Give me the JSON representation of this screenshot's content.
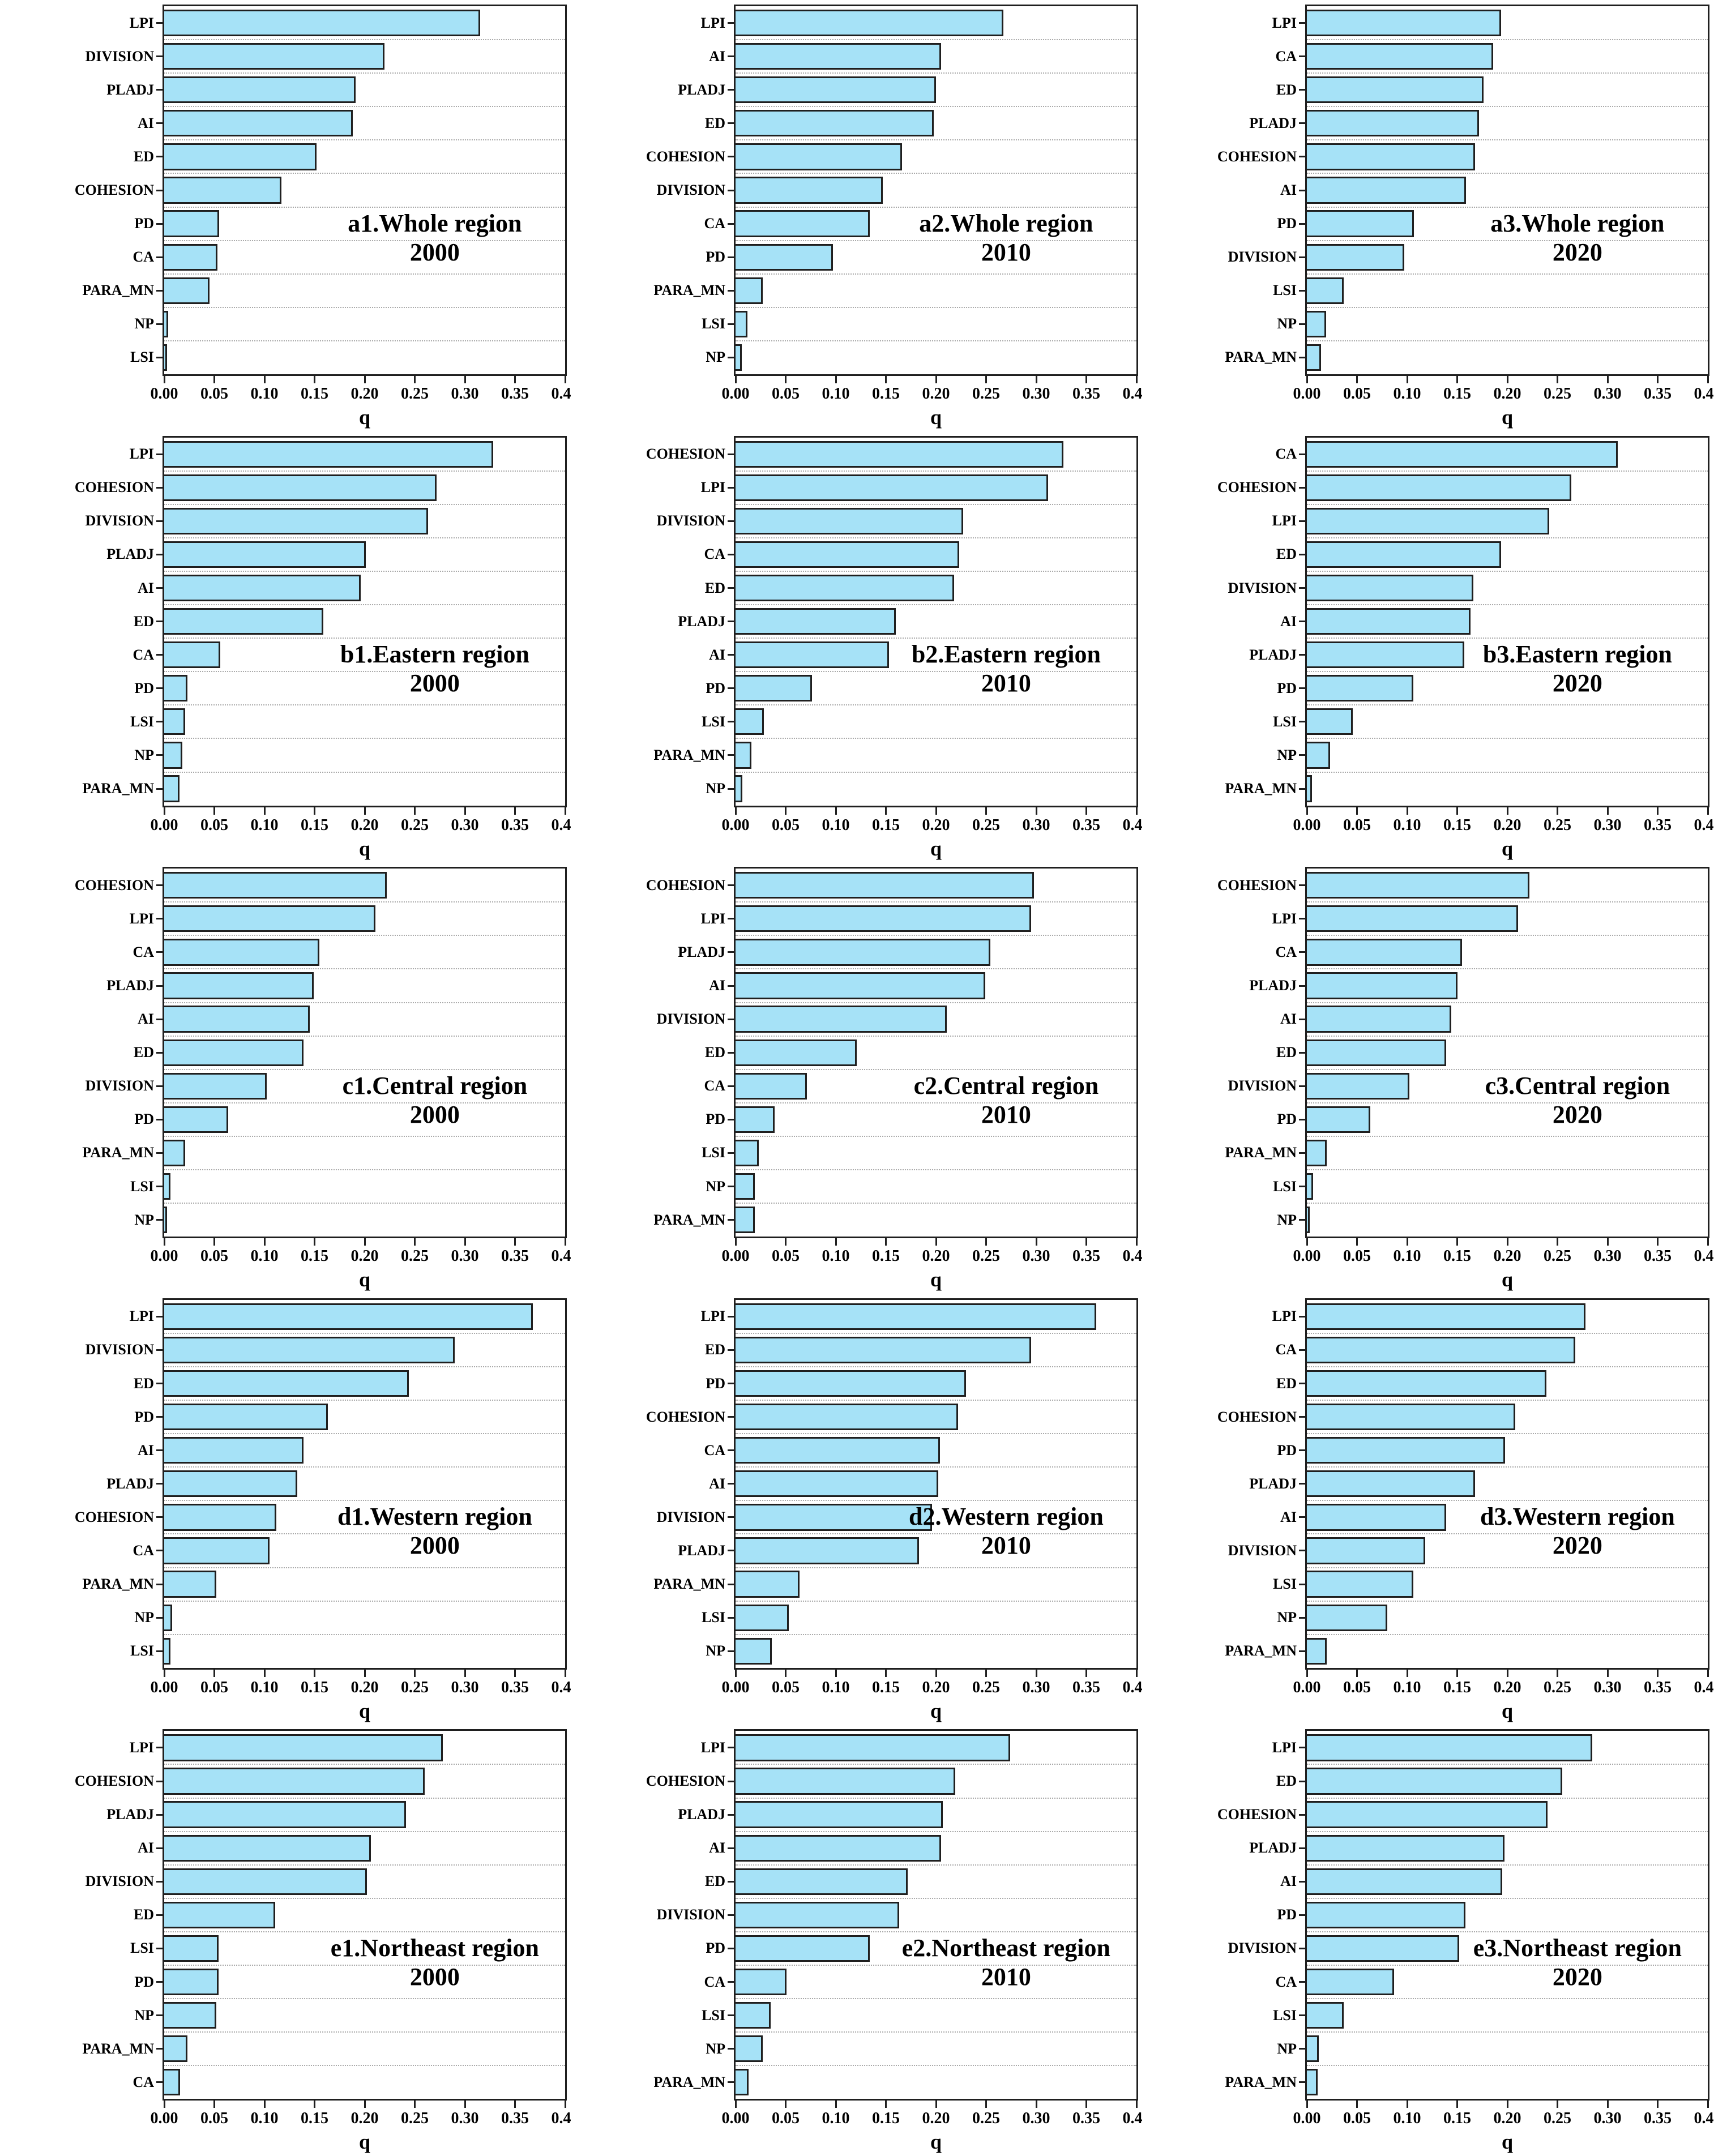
{
  "figure": {
    "bar_color": "#a6e2f7",
    "bar_border_color": "#1f1f1f",
    "gridline_color": "#a9a9a9",
    "text_color": "#000000",
    "axis": {
      "xlabel": "q",
      "xlim": [
        0,
        0.4
      ],
      "xticks": [
        "0.00",
        "0.05",
        "0.10",
        "0.15",
        "0.20",
        "0.25",
        "0.30",
        "0.35",
        "0.40"
      ],
      "grid": "horizontal-dotted",
      "orientation": "horizontal-bars"
    }
  },
  "chart_data": [
    {
      "type": "bar",
      "id": "a1",
      "title_line1": "a1.Whole region",
      "title_line2": "2000",
      "region": "Whole region",
      "year": "2000",
      "xlabel": "q",
      "xlim": [
        0,
        0.4
      ],
      "categories": [
        "LPI",
        "DIVISION",
        "PLADJ",
        "AI",
        "ED",
        "COHESION",
        "PD",
        "CA",
        "PARA_MN",
        "NP",
        "LSI"
      ],
      "values": [
        0.315,
        0.22,
        0.191,
        0.188,
        0.152,
        0.117,
        0.055,
        0.053,
        0.045,
        0.004,
        0.003
      ]
    },
    {
      "type": "bar",
      "id": "a2",
      "title_line1": "a2.Whole region",
      "title_line2": "2010",
      "region": "Whole region",
      "year": "2010",
      "xlabel": "q",
      "xlim": [
        0,
        0.4
      ],
      "categories": [
        "LPI",
        "AI",
        "PLADJ",
        "ED",
        "COHESION",
        "DIVISION",
        "CA",
        "PD",
        "PARA_MN",
        "LSI",
        "NP"
      ],
      "values": [
        0.267,
        0.205,
        0.2,
        0.198,
        0.166,
        0.147,
        0.134,
        0.097,
        0.027,
        0.012,
        0.006
      ]
    },
    {
      "type": "bar",
      "id": "a3",
      "title_line1": "a3.Whole region",
      "title_line2": "2020",
      "region": "Whole region",
      "year": "2020",
      "xlabel": "q",
      "xlim": [
        0,
        0.4
      ],
      "categories": [
        "LPI",
        "CA",
        "ED",
        "PLADJ",
        "COHESION",
        "AI",
        "PD",
        "DIVISION",
        "LSI",
        "NP",
        "PARA_MN"
      ],
      "values": [
        0.194,
        0.186,
        0.176,
        0.172,
        0.168,
        0.159,
        0.107,
        0.097,
        0.037,
        0.019,
        0.014
      ]
    },
    {
      "type": "bar",
      "id": "b1",
      "title_line1": "b1.Eastern region",
      "title_line2": "2000",
      "region": "Eastern region",
      "year": "2000",
      "xlabel": "q",
      "xlim": [
        0,
        0.4
      ],
      "categories": [
        "LPI",
        "COHESION",
        "DIVISION",
        "PLADJ",
        "AI",
        "ED",
        "CA",
        "PD",
        "LSI",
        "NP",
        "PARA_MN"
      ],
      "values": [
        0.328,
        0.272,
        0.263,
        0.201,
        0.196,
        0.159,
        0.056,
        0.023,
        0.021,
        0.018,
        0.015
      ]
    },
    {
      "type": "bar",
      "id": "b2",
      "title_line1": "b2.Eastern region",
      "title_line2": "2010",
      "region": "Eastern region",
      "year": "2010",
      "xlabel": "q",
      "xlim": [
        0,
        0.4
      ],
      "categories": [
        "COHESION",
        "LPI",
        "DIVISION",
        "CA",
        "ED",
        "PLADJ",
        "AI",
        "PD",
        "LSI",
        "PARA_MN",
        "NP"
      ],
      "values": [
        0.327,
        0.312,
        0.227,
        0.223,
        0.218,
        0.16,
        0.153,
        0.076,
        0.028,
        0.016,
        0.007
      ]
    },
    {
      "type": "bar",
      "id": "b3",
      "title_line1": "b3.Eastern region",
      "title_line2": "2020",
      "region": "Eastern region",
      "year": "2020",
      "xlabel": "q",
      "xlim": [
        0,
        0.4
      ],
      "categories": [
        "CA",
        "COHESION",
        "LPI",
        "ED",
        "DIVISION",
        "AI",
        "PLADJ",
        "PD",
        "LSI",
        "NP",
        "PARA_MN"
      ],
      "values": [
        0.31,
        0.264,
        0.242,
        0.194,
        0.166,
        0.163,
        0.157,
        0.106,
        0.046,
        0.023,
        0.005
      ]
    },
    {
      "type": "bar",
      "id": "c1",
      "title_line1": "c1.Central region",
      "title_line2": "2000",
      "region": "Central region",
      "year": "2000",
      "xlabel": "q",
      "xlim": [
        0,
        0.4
      ],
      "categories": [
        "COHESION",
        "LPI",
        "CA",
        "PLADJ",
        "AI",
        "ED",
        "DIVISION",
        "PD",
        "PARA_MN",
        "LSI",
        "NP"
      ],
      "values": [
        0.222,
        0.211,
        0.155,
        0.149,
        0.145,
        0.139,
        0.102,
        0.064,
        0.021,
        0.006,
        0.003
      ]
    },
    {
      "type": "bar",
      "id": "c2",
      "title_line1": "c2.Central region",
      "title_line2": "2010",
      "region": "Central region",
      "year": "2010",
      "xlabel": "q",
      "xlim": [
        0,
        0.4
      ],
      "categories": [
        "COHESION",
        "LPI",
        "PLADJ",
        "AI",
        "DIVISION",
        "ED",
        "CA",
        "PD",
        "LSI",
        "NP",
        "PARA_MN"
      ],
      "values": [
        0.298,
        0.295,
        0.254,
        0.249,
        0.211,
        0.121,
        0.071,
        0.039,
        0.023,
        0.019,
        0.019
      ]
    },
    {
      "type": "bar",
      "id": "c3",
      "title_line1": "c3.Central region",
      "title_line2": "2020",
      "region": "Central region",
      "year": "2020",
      "xlabel": "q",
      "xlim": [
        0,
        0.4
      ],
      "categories": [
        "COHESION",
        "LPI",
        "CA",
        "PLADJ",
        "AI",
        "ED",
        "DIVISION",
        "PD",
        "PARA_MN",
        "LSI",
        "NP"
      ],
      "values": [
        0.222,
        0.211,
        0.155,
        0.15,
        0.144,
        0.139,
        0.102,
        0.063,
        0.02,
        0.006,
        0.003
      ]
    },
    {
      "type": "bar",
      "id": "d1",
      "title_line1": "d1.Western region",
      "title_line2": "2000",
      "region": "Western region",
      "year": "2000",
      "xlabel": "q",
      "xlim": [
        0,
        0.4
      ],
      "categories": [
        "LPI",
        "DIVISION",
        "ED",
        "PD",
        "AI",
        "PLADJ",
        "COHESION",
        "CA",
        "PARA_MN",
        "NP",
        "LSI"
      ],
      "values": [
        0.368,
        0.29,
        0.244,
        0.163,
        0.139,
        0.133,
        0.112,
        0.105,
        0.052,
        0.008,
        0.006
      ]
    },
    {
      "type": "bar",
      "id": "d2",
      "title_line1": "d2.Western region",
      "title_line2": "2010",
      "region": "Western region",
      "year": "2010",
      "xlabel": "q",
      "xlim": [
        0,
        0.4
      ],
      "categories": [
        "LPI",
        "ED",
        "PD",
        "COHESION",
        "CA",
        "AI",
        "DIVISION",
        "PLADJ",
        "PARA_MN",
        "LSI",
        "NP"
      ],
      "values": [
        0.36,
        0.295,
        0.23,
        0.222,
        0.204,
        0.202,
        0.196,
        0.183,
        0.064,
        0.053,
        0.036
      ]
    },
    {
      "type": "bar",
      "id": "d3",
      "title_line1": "d3.Western region",
      "title_line2": "2020",
      "region": "Western region",
      "year": "2020",
      "xlabel": "q",
      "xlim": [
        0,
        0.4
      ],
      "categories": [
        "LPI",
        "CA",
        "ED",
        "COHESION",
        "PD",
        "PLADJ",
        "AI",
        "DIVISION",
        "LSI",
        "NP",
        "PARA_MN"
      ],
      "values": [
        0.278,
        0.268,
        0.239,
        0.208,
        0.198,
        0.168,
        0.139,
        0.118,
        0.106,
        0.08,
        0.02
      ]
    },
    {
      "type": "bar",
      "id": "e1",
      "title_line1": "e1.Northeast region",
      "title_line2": "2000",
      "region": "Northeast region",
      "year": "2000",
      "xlabel": "q",
      "xlim": [
        0,
        0.4
      ],
      "categories": [
        "LPI",
        "COHESION",
        "PLADJ",
        "AI",
        "DIVISION",
        "ED",
        "LSI",
        "PD",
        "NP",
        "PARA_MN",
        "CA"
      ],
      "values": [
        0.278,
        0.26,
        0.241,
        0.206,
        0.202,
        0.111,
        0.054,
        0.054,
        0.052,
        0.023,
        0.016
      ]
    },
    {
      "type": "bar",
      "id": "e2",
      "title_line1": "e2.Northeast region",
      "title_line2": "2010",
      "region": "Northeast region",
      "year": "2010",
      "xlabel": "q",
      "xlim": [
        0,
        0.4
      ],
      "categories": [
        "LPI",
        "COHESION",
        "PLADJ",
        "AI",
        "ED",
        "DIVISION",
        "PD",
        "CA",
        "LSI",
        "NP",
        "PARA_MN"
      ],
      "values": [
        0.274,
        0.219,
        0.207,
        0.205,
        0.172,
        0.163,
        0.134,
        0.051,
        0.035,
        0.027,
        0.013
      ]
    },
    {
      "type": "bar",
      "id": "e3",
      "title_line1": "e3.Northeast region",
      "title_line2": "2020",
      "region": "Northeast region",
      "year": "2020",
      "xlabel": "q",
      "xlim": [
        0,
        0.4
      ],
      "categories": [
        "LPI",
        "ED",
        "COHESION",
        "PLADJ",
        "AI",
        "PD",
        "DIVISION",
        "CA",
        "LSI",
        "NP",
        "PARA_MN"
      ],
      "values": [
        0.285,
        0.255,
        0.24,
        0.197,
        0.195,
        0.158,
        0.152,
        0.087,
        0.037,
        0.012,
        0.011
      ]
    }
  ]
}
